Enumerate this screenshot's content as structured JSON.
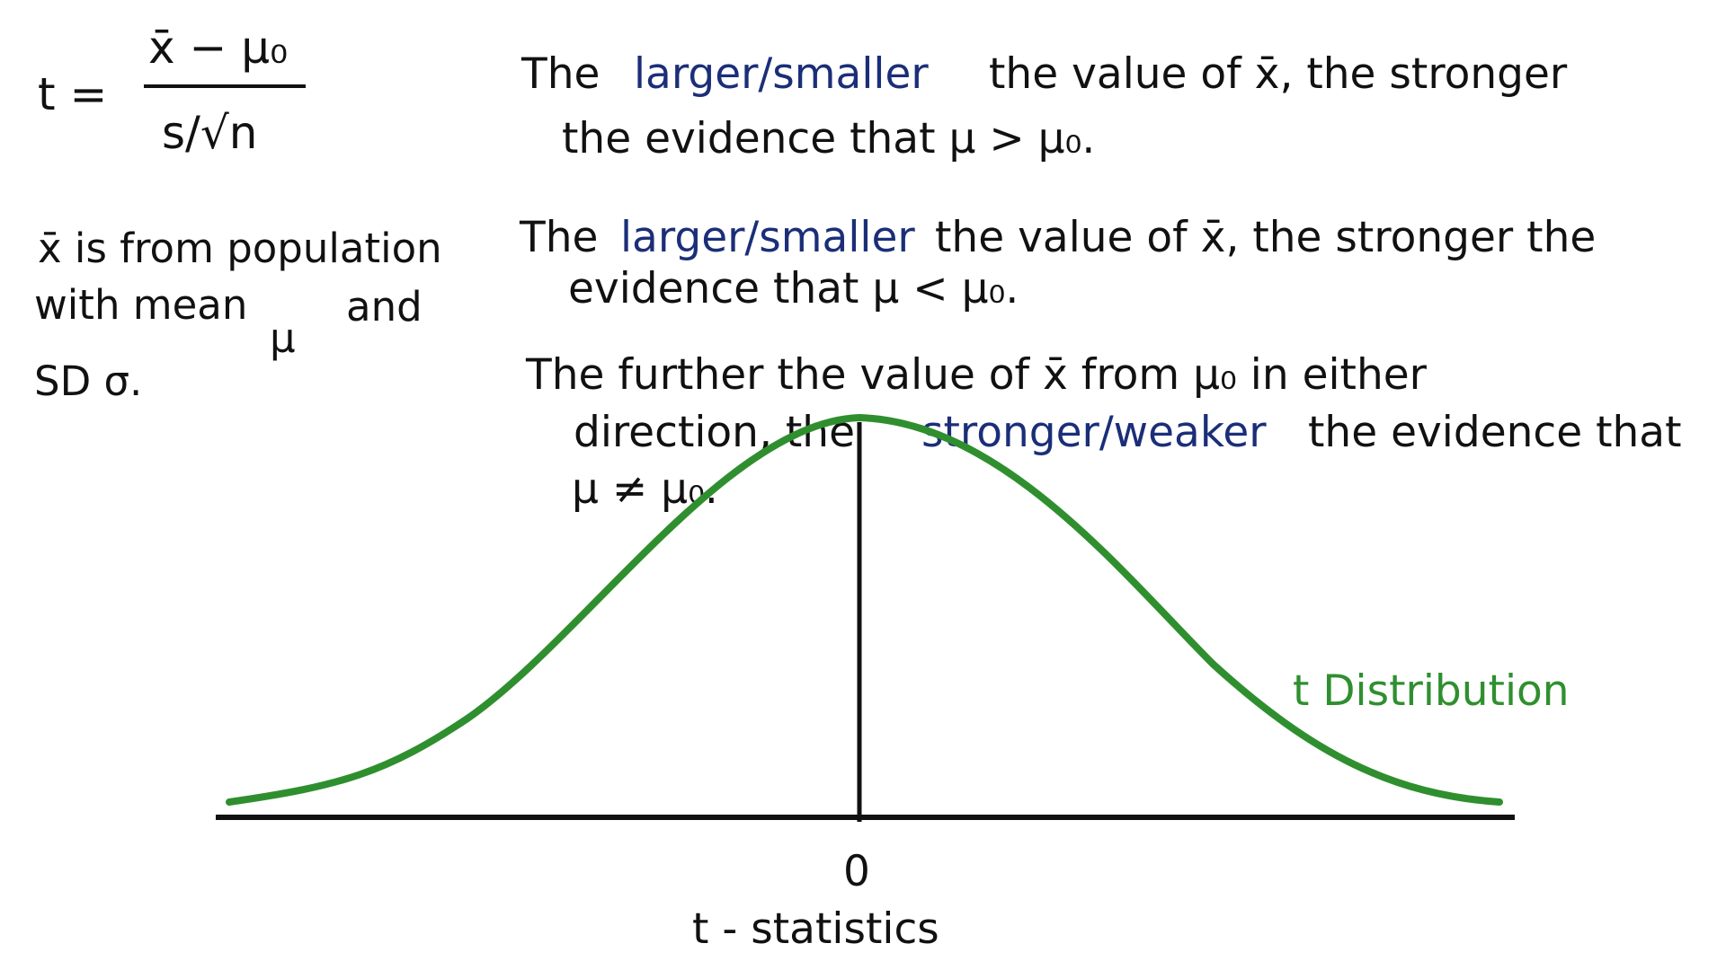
{
  "formula": {
    "lhs": "t =",
    "numerator": "x̄ − μ₀",
    "denominator": "s/√n"
  },
  "note": {
    "line1": "x̄ is from population",
    "line2_a": "with mean",
    "line2_mu": "μ",
    "line2_b": "and",
    "line3": "SD σ."
  },
  "statements": {
    "upper": {
      "line1_a": "The",
      "line1_choice": "larger/smaller",
      "line1_b": "the value of x̄, the stronger",
      "line2": "the evidence that μ > μ₀."
    },
    "lower": {
      "line1_a": "The",
      "line1_choice": "larger/smaller",
      "line1_b": "the value of x̄, the stronger the",
      "line2": "evidence that μ < μ₀."
    },
    "two_sided": {
      "line1": "The further the value of x̄ from μ₀ in either",
      "line2_a": "direction, the",
      "line2_choice": "stronger/weaker",
      "line2_b": "the evidence that",
      "line3": "μ ≠ μ₀."
    }
  },
  "graph": {
    "curve_label": "t Distribution",
    "center_tick": "0",
    "axis_label": "t - statistics",
    "colors": {
      "curve": "#2f8f2f",
      "choice_text": "#1b2e78",
      "ink": "#111111"
    }
  }
}
